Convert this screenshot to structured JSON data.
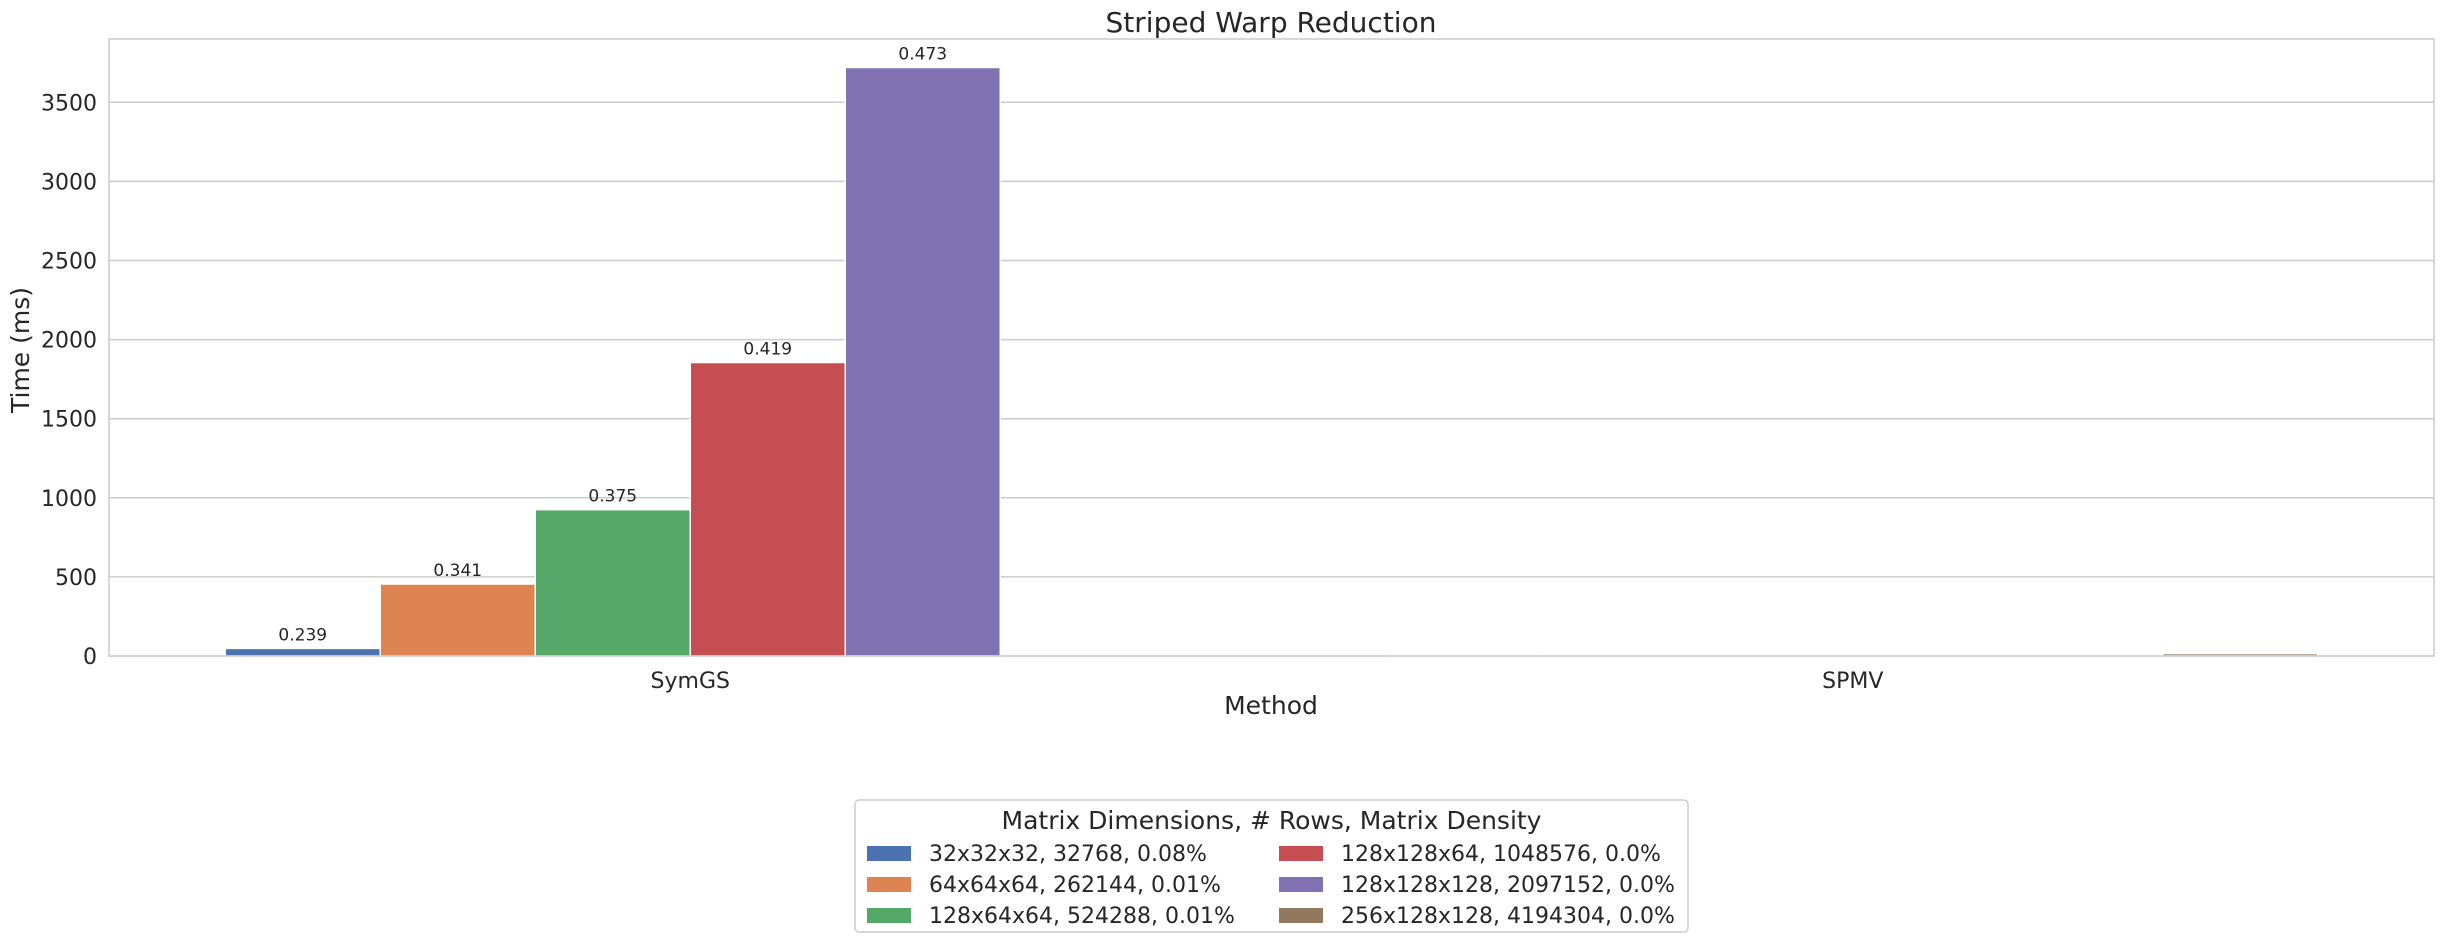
{
  "chart_data": {
    "type": "bar",
    "title": "Striped Warp Reduction",
    "xlabel": "Method",
    "ylabel": "Time (ms)",
    "ylim": [
      0,
      3900
    ],
    "yticks": [
      0,
      500,
      1000,
      1500,
      2000,
      2500,
      3000,
      3500
    ],
    "grid": true,
    "categories": [
      "SymGS",
      "SPMV"
    ],
    "legend": {
      "title": "Matrix Dimensions, # Rows, Matrix Density",
      "placement": "bottom-center",
      "columns": 2
    },
    "series": [
      {
        "name": "32x32x32, 32768, 0.08%",
        "color": "#4c72b0",
        "values": [
          48,
          0.5
        ],
        "labels": [
          "0.239",
          ""
        ]
      },
      {
        "name": "64x64x64, 262144, 0.01%",
        "color": "#dd8452",
        "values": [
          455,
          1.5
        ],
        "labels": [
          "0.341",
          ""
        ]
      },
      {
        "name": "128x64x64, 524288, 0.01%",
        "color": "#55a868",
        "values": [
          925,
          2.5
        ],
        "labels": [
          "0.375",
          ""
        ]
      },
      {
        "name": "128x128x64, 1048576, 0.0%",
        "color": "#c44e52",
        "values": [
          1855,
          4
        ],
        "labels": [
          "0.419",
          ""
        ]
      },
      {
        "name": "128x128x128, 2097152, 0.0%",
        "color": "#8172b3",
        "values": [
          3720,
          8
        ],
        "labels": [
          "0.473",
          ""
        ]
      },
      {
        "name": "256x128x128, 4194304, 0.0%",
        "color": "#937860",
        "values": [
          0,
          15
        ],
        "labels": [
          "",
          ""
        ]
      }
    ]
  }
}
